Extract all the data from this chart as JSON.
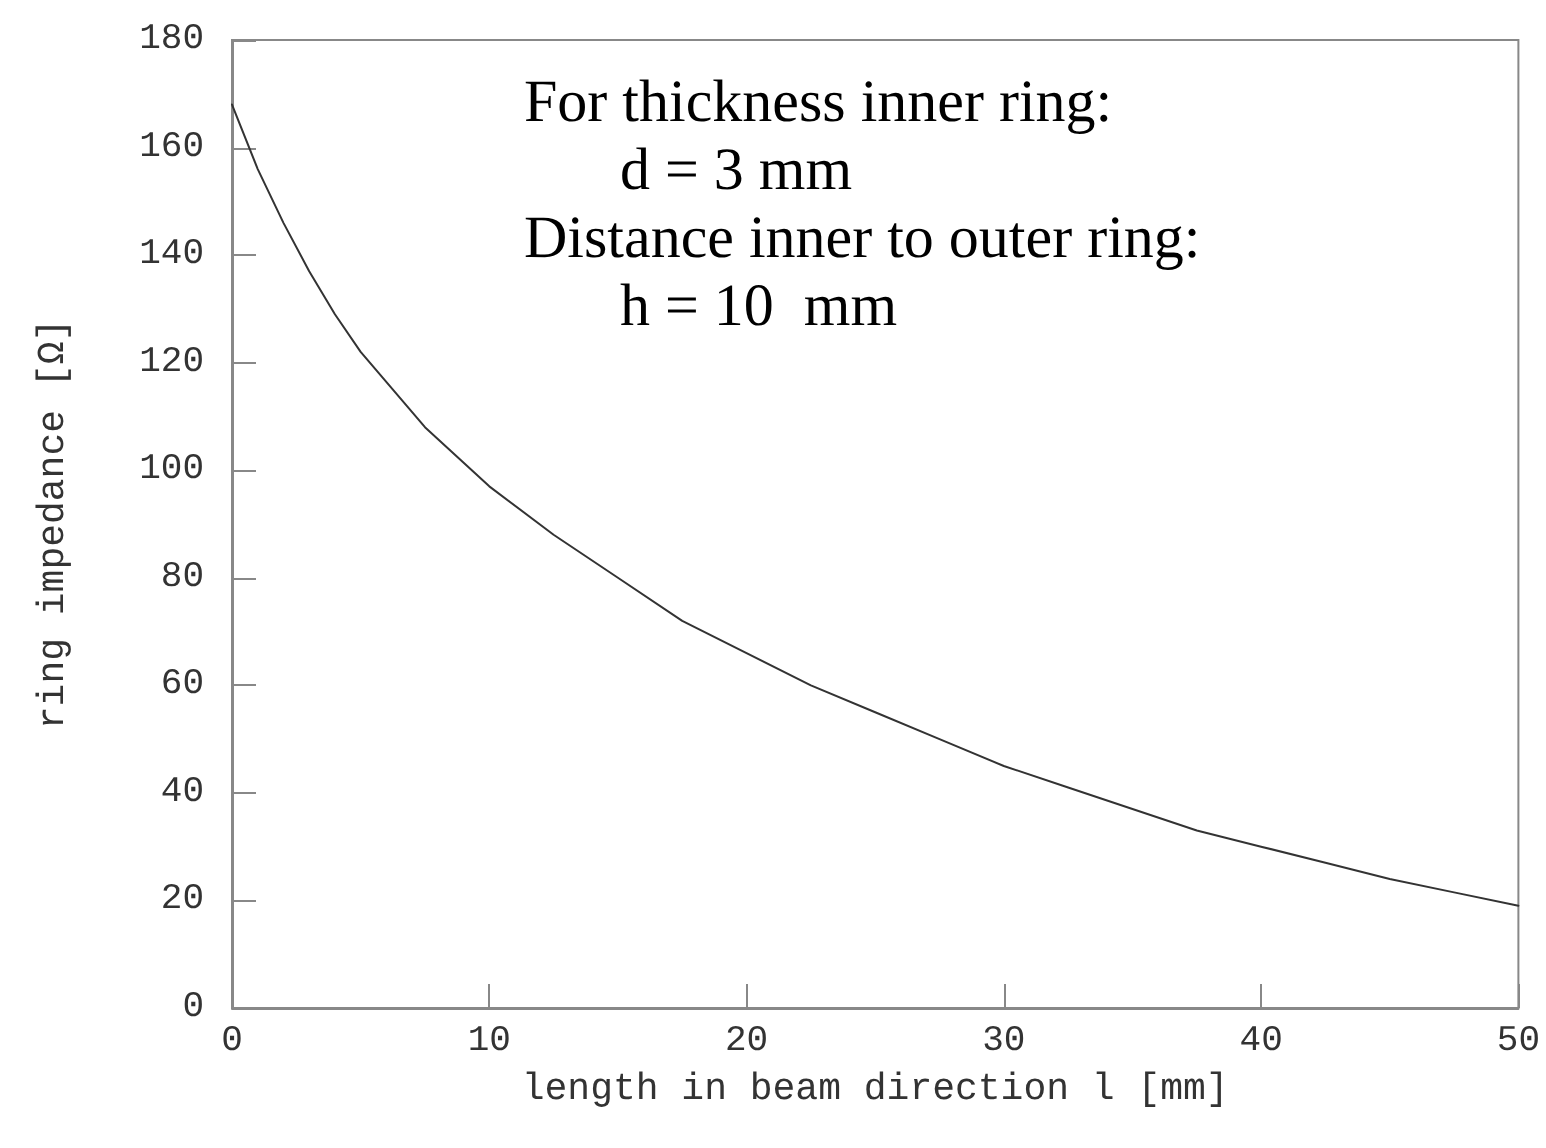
{
  "chart_data": {
    "type": "line",
    "xlabel": "length in beam direction l [mm]",
    "ylabel": "ring impedance [Ω]",
    "annotations": [
      "For thickness inner ring:",
      "d = 3 mm",
      "Distance inner to outer ring:",
      "h = 10  mm"
    ],
    "x": [
      0,
      1,
      2,
      3,
      4,
      5,
      7.5,
      10,
      12.5,
      15,
      17.5,
      20,
      22.5,
      25,
      27.5,
      30,
      32.5,
      35,
      37.5,
      40,
      42.5,
      45,
      47.5,
      50
    ],
    "series": [
      {
        "color": "#333333",
        "values": [
          168,
          156,
          146,
          137,
          129,
          122,
          108,
          97,
          88,
          80,
          72,
          66,
          60,
          55,
          50,
          45,
          41,
          37,
          33,
          30,
          27,
          24,
          21.5,
          19
        ]
      }
    ],
    "xlim": [
      0,
      50
    ],
    "xticks": [
      0,
      10,
      20,
      30,
      40,
      50
    ],
    "ylim": [
      0,
      180
    ],
    "yticks": [
      0,
      20,
      40,
      60,
      80,
      100,
      120,
      140,
      160,
      180
    ],
    "grid": false,
    "marker": "none",
    "line_style": "solid"
  }
}
